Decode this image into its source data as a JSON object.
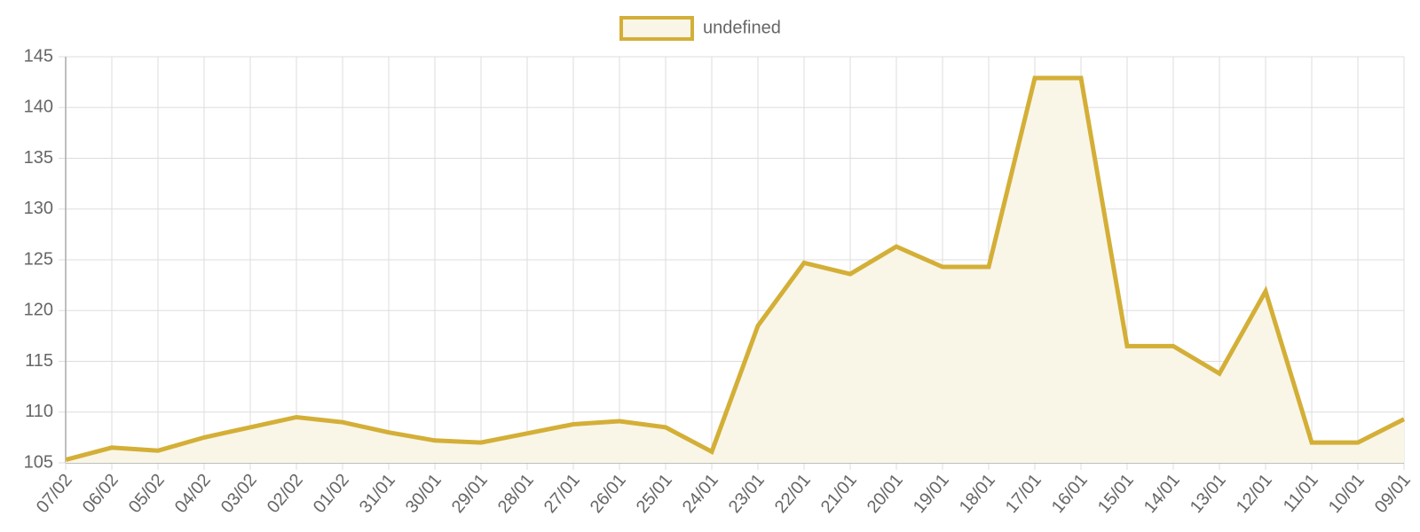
{
  "chart_data": {
    "type": "line",
    "categories": [
      "07/02",
      "06/02",
      "05/02",
      "04/02",
      "03/02",
      "02/02",
      "01/02",
      "31/01",
      "30/01",
      "29/01",
      "28/01",
      "27/01",
      "26/01",
      "25/01",
      "24/01",
      "23/01",
      "22/01",
      "21/01",
      "20/01",
      "19/01",
      "18/01",
      "17/01",
      "16/01",
      "15/01",
      "14/01",
      "13/01",
      "12/01",
      "11/01",
      "10/01",
      "09/01"
    ],
    "series": [
      {
        "name": "undefined",
        "color": "#d4af37",
        "fill": "#f9f6e8",
        "values": [
          105.3,
          106.5,
          106.2,
          107.5,
          108.5,
          109.5,
          109.0,
          108.0,
          107.2,
          107.0,
          107.9,
          108.8,
          109.1,
          108.5,
          106.1,
          118.5,
          124.7,
          123.6,
          126.3,
          124.3,
          124.3,
          142.9,
          142.9,
          116.5,
          116.5,
          113.8,
          121.9,
          107.0,
          107.0,
          109.3
        ]
      }
    ],
    "ylim": [
      105,
      145
    ],
    "yticks": [
      105,
      110,
      115,
      120,
      125,
      130,
      135,
      140,
      145
    ],
    "grid": true,
    "legend": "top"
  }
}
